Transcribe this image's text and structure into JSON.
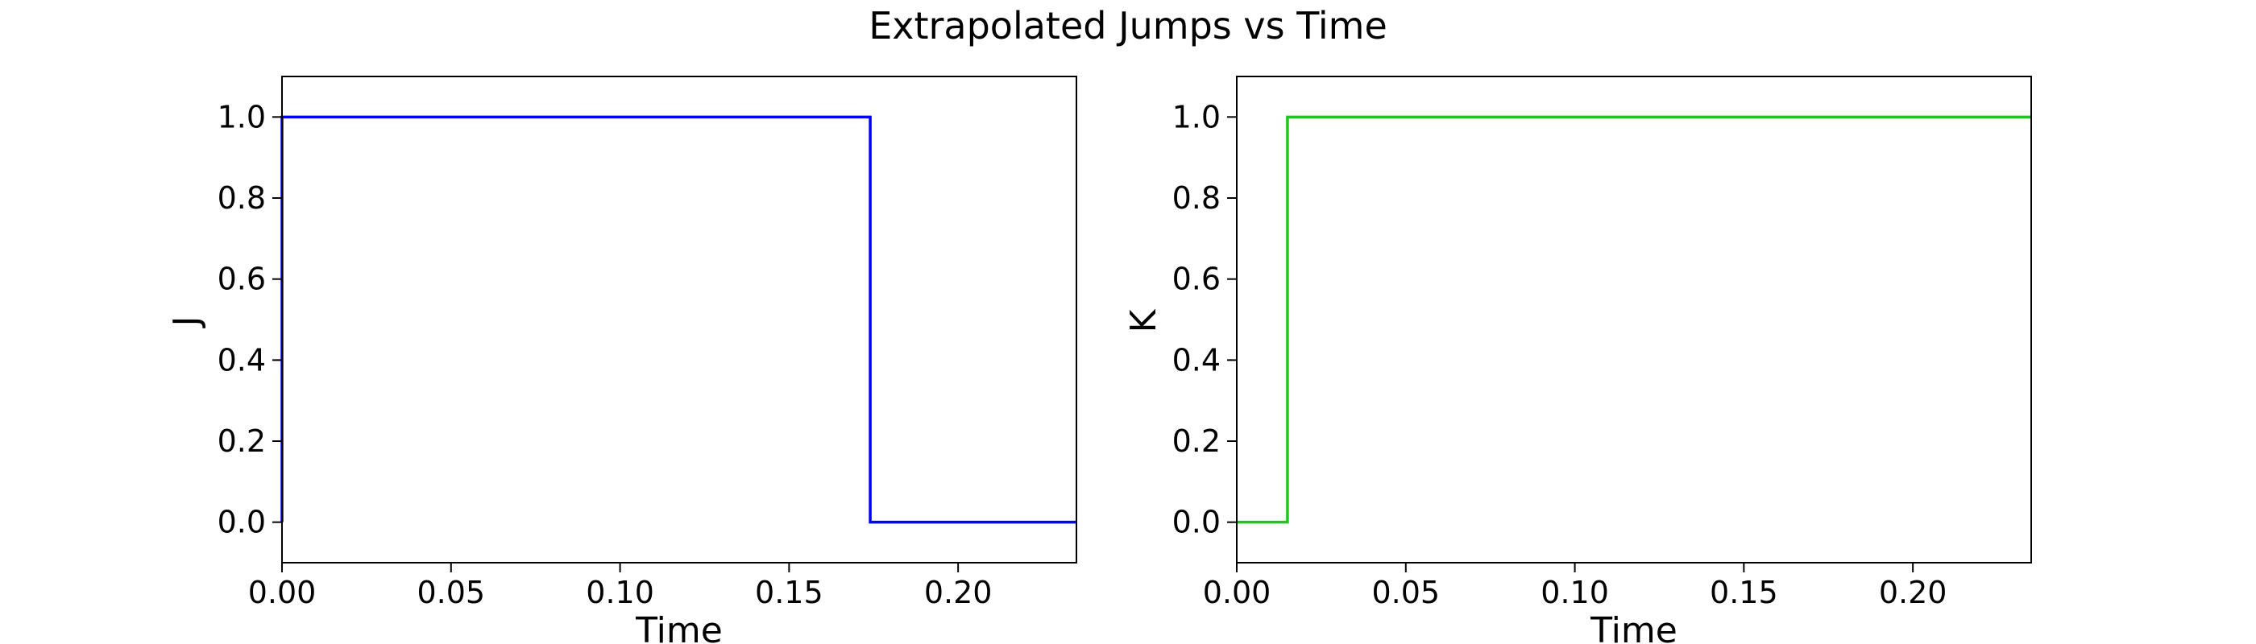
{
  "figure": {
    "title": "Extrapolated Jumps vs Time"
  },
  "chart_data": [
    {
      "type": "line",
      "step": "post",
      "xlabel": "Time",
      "ylabel": "J",
      "xlim": [
        0.0,
        0.235
      ],
      "ylim": [
        -0.1,
        1.1
      ],
      "xticks": [
        "0.00",
        "0.05",
        "0.10",
        "0.15",
        "0.20"
      ],
      "yticks": [
        "0.0",
        "0.2",
        "0.4",
        "0.6",
        "0.8",
        "1.0"
      ],
      "grid": false,
      "color": "#0000ff",
      "x": [
        0.0,
        0.0,
        0.174,
        0.174,
        0.235
      ],
      "y": [
        0.0,
        1.0,
        1.0,
        0.0,
        0.0
      ]
    },
    {
      "type": "line",
      "step": "post",
      "xlabel": "Time",
      "ylabel": "K",
      "xlim": [
        0.0,
        0.235
      ],
      "ylim": [
        -0.1,
        1.1
      ],
      "xticks": [
        "0.00",
        "0.05",
        "0.10",
        "0.15",
        "0.20"
      ],
      "yticks": [
        "0.0",
        "0.2",
        "0.4",
        "0.6",
        "0.8",
        "1.0"
      ],
      "grid": false,
      "color": "#22c322",
      "x": [
        0.0,
        0.015,
        0.015,
        0.235
      ],
      "y": [
        0.0,
        0.0,
        1.0,
        1.0
      ]
    }
  ]
}
